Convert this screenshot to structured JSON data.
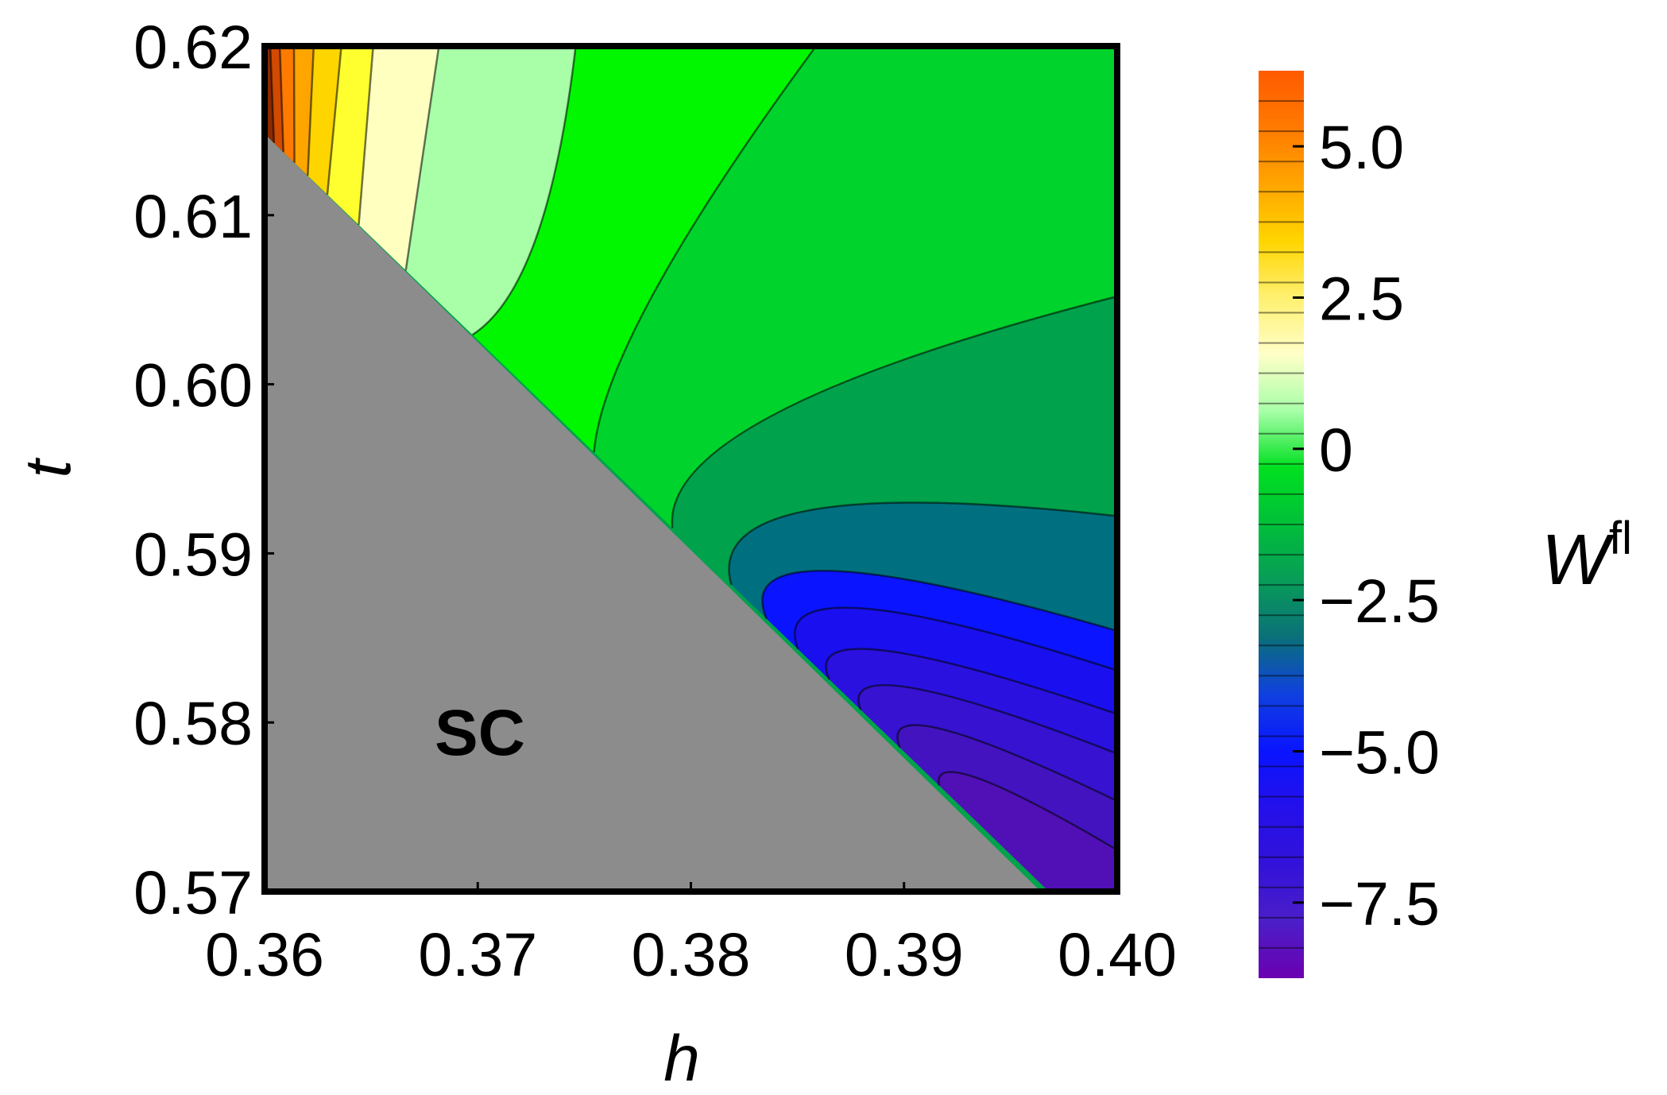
{
  "chart_data": {
    "type": "heatmap",
    "subtype": "filled-contour",
    "title": "",
    "xlabel": "h",
    "ylabel": "t",
    "xlim": [
      0.36,
      0.4
    ],
    "ylim": [
      0.57,
      0.62
    ],
    "xticks": [
      "0.36",
      "0.37",
      "0.38",
      "0.39",
      "0.40"
    ],
    "yticks": [
      "0.57",
      "0.58",
      "0.59",
      "0.60",
      "0.61",
      "0.62"
    ],
    "region_label": "SC",
    "region_color": "#8c8c8c",
    "phase_boundary": {
      "x": [
        0.36,
        0.3968
      ],
      "y": [
        0.6148,
        0.57
      ]
    },
    "colorbar": {
      "label_main": "W",
      "label_sup": "fl",
      "range": [
        -8.75,
        6.25
      ],
      "tick_values": [
        5.0,
        2.5,
        0,
        -2.5,
        -5.0,
        -7.5
      ],
      "tick_labels": [
        "5.0",
        "2.5",
        "0",
        "−2.5",
        "−5.0",
        "−7.5"
      ],
      "colors": [
        "#6a00b0",
        "#4b1ec8",
        "#3312d9",
        "#2410ea",
        "#0a14ff",
        "#1040e0",
        "#0b6f7a",
        "#089c58",
        "#00bf3a",
        "#00e020",
        "#a8ffa8",
        "#ffffc8",
        "#fff070",
        "#ffd500",
        "#ffa500",
        "#ff7a00",
        "#ff5a00"
      ]
    },
    "bands": [
      {
        "from": 6.25,
        "to": 2.5,
        "colors": [
          "#8b2a00",
          "#d24a00",
          "#ff7a00",
          "#ffa500"
        ]
      },
      {
        "from": 2.5,
        "to": 0.0,
        "colors": [
          "#ffd500",
          "#ffff30",
          "#ffffc0"
        ]
      },
      {
        "from": 0.0,
        "to": -0.5,
        "color": "#a8ffa8"
      },
      {
        "from": -0.5,
        "to": -1.0,
        "color": "#00f700"
      },
      {
        "from": -1.0,
        "to": -1.8,
        "color": "#00d42c"
      },
      {
        "from": -1.8,
        "to": -3.0,
        "color": "#00a24c"
      },
      {
        "from": -3.0,
        "to": -4.0,
        "color": "#007080"
      },
      {
        "from": -4.0,
        "to": -5.0,
        "color": "#0a14ff"
      },
      {
        "from": -5.0,
        "to": -8.8,
        "colors": [
          "#1a0fee",
          "#2b11df",
          "#3712d0",
          "#4313c0",
          "#5010b6",
          "#6606ae",
          "#45287a"
        ]
      }
    ]
  }
}
